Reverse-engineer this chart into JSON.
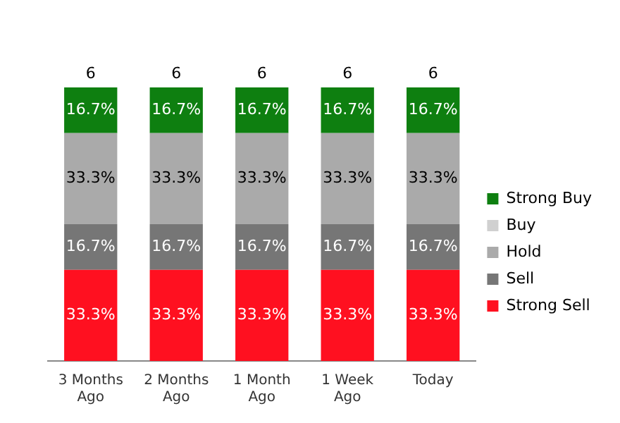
{
  "chart_data": {
    "type": "bar",
    "stacked": true,
    "legend": "right",
    "grid": false,
    "tick_labels": "x",
    "categories": [
      "3 Months Ago",
      "2 Months Ago",
      "1 Month Ago",
      "1 Week Ago",
      "Today"
    ],
    "series": [
      {
        "name": "Strong Sell",
        "color": "#ff1020",
        "values": [
          33.3,
          33.3,
          33.3,
          33.3,
          33.3
        ],
        "value_labels": [
          "33.3%",
          "33.3%",
          "33.3%",
          "33.3%",
          "33.3%"
        ]
      },
      {
        "name": "Sell",
        "color": "#767676",
        "values": [
          16.7,
          16.7,
          16.7,
          16.7,
          16.7
        ],
        "value_labels": [
          "16.7%",
          "16.7%",
          "16.7%",
          "16.7%",
          "16.7%"
        ]
      },
      {
        "name": "Hold",
        "color": "#aaaaaa",
        "values": [
          33.3,
          33.3,
          33.3,
          33.3,
          33.3
        ],
        "value_labels": [
          "33.3%",
          "33.3%",
          "33.3%",
          "33.3%",
          "33.3%"
        ]
      },
      {
        "name": "Buy",
        "color": "#d0d0d0",
        "values": [
          null,
          null,
          null,
          null,
          null
        ]
      },
      {
        "name": "Strong Buy",
        "color": "#0e7f10",
        "values": [
          16.7,
          16.7,
          16.7,
          16.7,
          16.7
        ],
        "value_labels": [
          "16.7%",
          "16.7%",
          "16.7%",
          "16.7%",
          "16.7%"
        ]
      }
    ],
    "annotations": [
      {
        "text": "6",
        "x": "3 Months Ago",
        "y": 100
      },
      {
        "text": "6",
        "x": "2 Months Ago",
        "y": 100
      },
      {
        "text": "6",
        "x": "1 Month Ago",
        "y": 100
      },
      {
        "text": "6",
        "x": "1 Week Ago",
        "y": 100
      },
      {
        "text": "6",
        "x": "Today",
        "y": 100
      }
    ]
  }
}
